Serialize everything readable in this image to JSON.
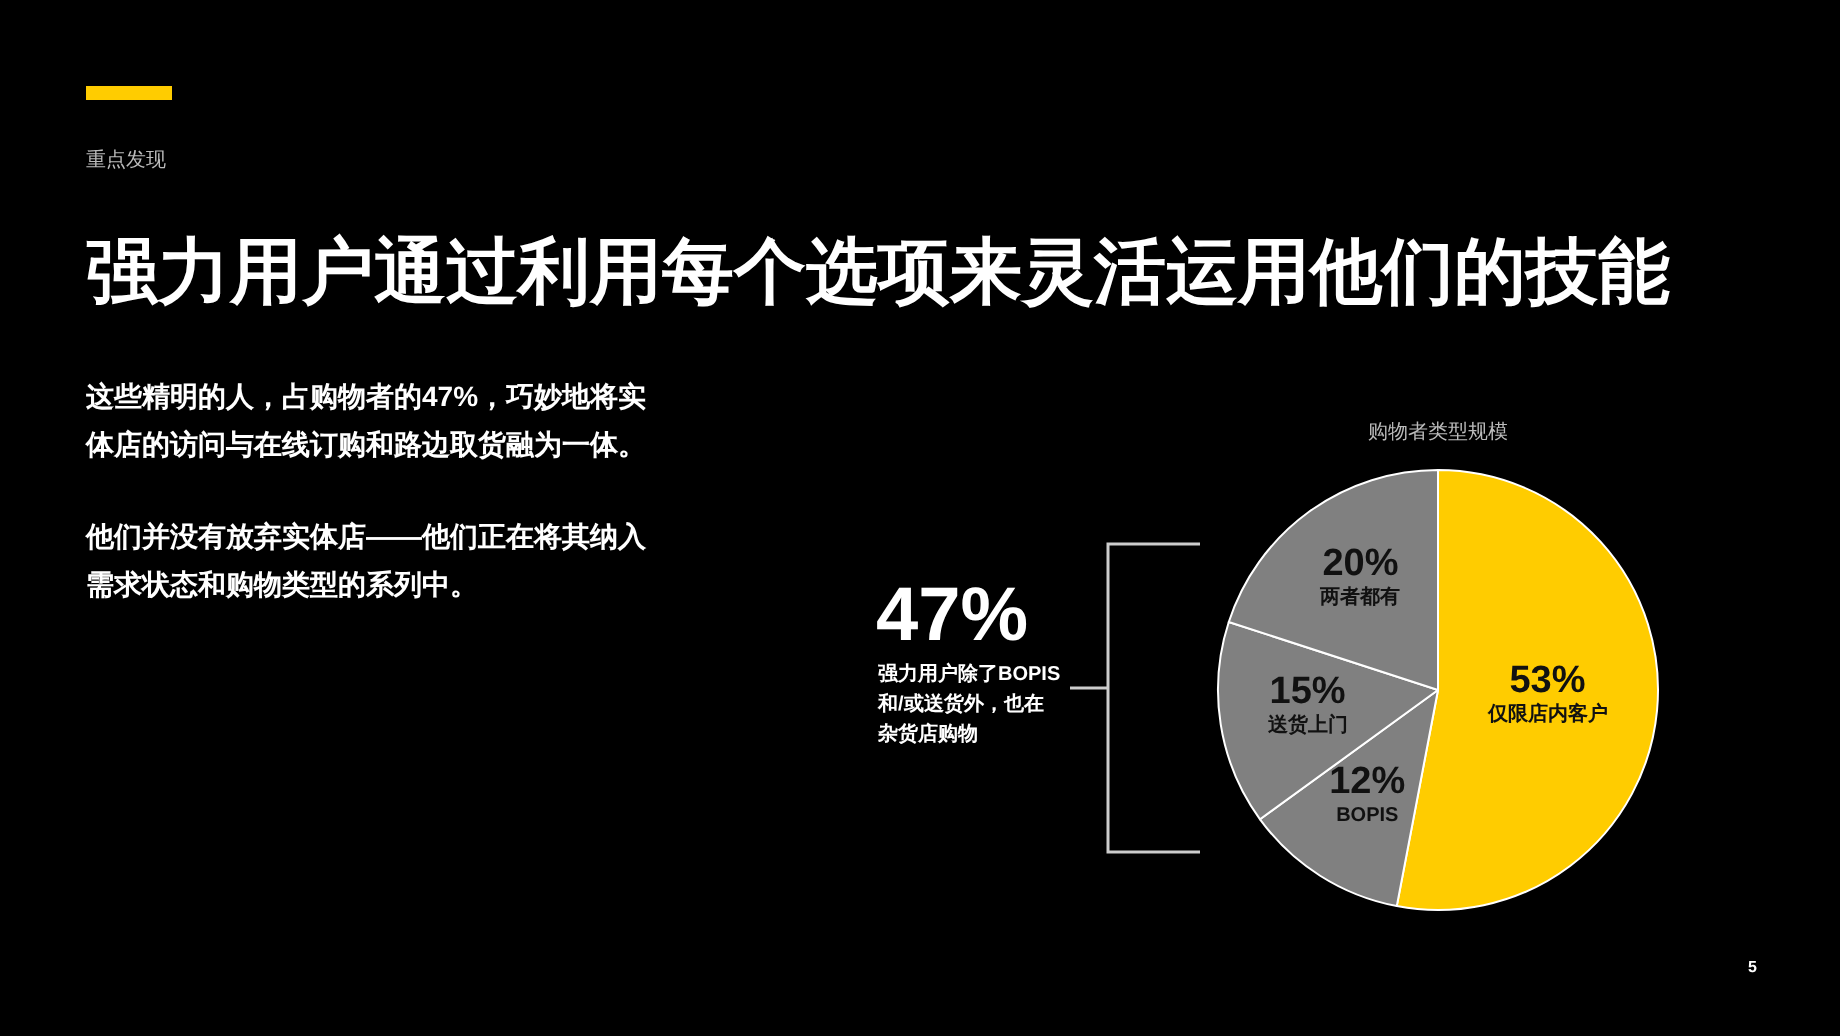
{
  "chart_data": {
    "type": "pie",
    "title": "强力用户通过利用每个选项来灵活运用他们的技能",
    "subtitle": "购物者类型规模",
    "categories": [
      "仅限店内客户",
      "BOPIS",
      "送货上门",
      "两者都有"
    ],
    "values": [
      53,
      12,
      15,
      20
    ],
    "value_labels": [
      "53%",
      "12%",
      "15%",
      "20%"
    ],
    "colors": [
      "#ffcc00",
      "#808080",
      "#808080",
      "#808080"
    ],
    "annotations": [
      "重点发现",
      "这些精明的人，占购物者的47%，巧妙地将实体店的访问与在线订购和路边取货融为一体。",
      "他们并没有放弃实体店——他们正在将其纳入需求状态和购物类型的系列中。",
      "47%",
      "强力用户除了BOPIS和/或送货外，也在杂货店购物",
      "5"
    ]
  }
}
